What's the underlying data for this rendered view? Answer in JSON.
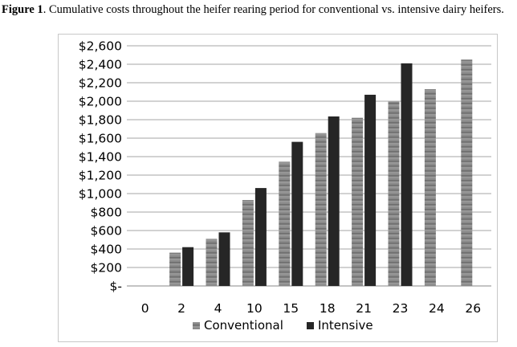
{
  "figure": {
    "label": "Figure 1",
    "caption": ". Cumulative costs throughout the heifer rearing period for conventional vs. intensive dairy heifers."
  },
  "colors": {
    "conventional": "#8a8a8a",
    "intensive": "#262626",
    "gridline": "#a6a6a6",
    "axis": "#888888"
  },
  "chart_data": {
    "type": "bar",
    "categories": [
      "0",
      "2",
      "4",
      "10",
      "15",
      "18",
      "21",
      "23",
      "24",
      "26"
    ],
    "series": [
      {
        "name": "Conventional",
        "values": [
          0,
          360,
          510,
          930,
          1345,
          1655,
          1820,
          1995,
          2130,
          2450
        ]
      },
      {
        "name": "Intensive",
        "values": [
          0,
          420,
          580,
          1060,
          1560,
          1835,
          2070,
          2410,
          0,
          0
        ]
      }
    ],
    "y_tick_labels": [
      "$-",
      "$200",
      "$400",
      "$600",
      "$800",
      "$1,000",
      "$1,200",
      "$1,400",
      "$1,600",
      "$1,800",
      "$2,000",
      "$2,200",
      "$2,400",
      "$2,600"
    ],
    "ylim": [
      0,
      2600
    ],
    "y_step": 200,
    "grid": true,
    "legend_position": "bottom"
  }
}
